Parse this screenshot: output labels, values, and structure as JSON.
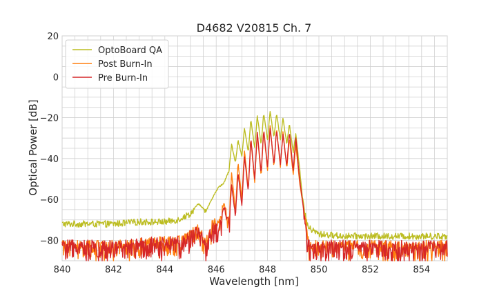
{
  "chart_data": {
    "type": "line",
    "title": "D4682 V20815 Ch. 7",
    "xlabel": "Wavelength [nm]",
    "ylabel": "Optical Power [dB]",
    "xlim": [
      840,
      855
    ],
    "ylim": [
      -90,
      20
    ],
    "x_ticks": [
      840,
      842,
      844,
      846,
      848,
      850,
      852,
      854
    ],
    "y_ticks": [
      20,
      0,
      -20,
      -40,
      -60,
      -80
    ],
    "x_tick_labels": [
      "840",
      "842",
      "844",
      "846",
      "848",
      "850",
      "852",
      "854"
    ],
    "y_tick_labels": [
      "20",
      "0",
      "−20",
      "−40",
      "−60",
      "−80"
    ],
    "grid": true,
    "legend_position": "top-left",
    "series": [
      {
        "name": "OptoBoard QA",
        "color": "#bcbd22",
        "x": [
          840,
          841,
          842,
          843,
          844,
          844.5,
          845,
          845.3,
          845.6,
          845.9,
          846.1,
          846.3,
          846.5,
          846.6,
          846.75,
          846.85,
          847.0,
          847.1,
          847.25,
          847.35,
          847.5,
          847.6,
          847.75,
          847.85,
          848.0,
          848.1,
          848.25,
          848.35,
          848.5,
          848.6,
          848.75,
          848.85,
          849.0,
          849.1,
          849.25,
          849.35,
          849.5,
          849.6,
          850,
          851,
          852,
          853,
          854,
          855
        ],
        "y": [
          -72,
          -72,
          -72,
          -71,
          -71,
          -70,
          -67,
          -62,
          -66,
          -58,
          -54,
          -52,
          -46,
          -33,
          -42,
          -31,
          -39,
          -25,
          -37,
          -21,
          -35,
          -19,
          -33,
          -18,
          -31,
          -17,
          -30,
          -18,
          -31,
          -20,
          -33,
          -23,
          -37,
          -28,
          -45,
          -58,
          -70,
          -74,
          -77,
          -78,
          -78,
          -78,
          -78,
          -78
        ]
      },
      {
        "name": "Post Burn-In",
        "color": "#ff7f0e",
        "x": [
          840,
          841,
          842,
          843,
          844,
          844.5,
          845,
          845.3,
          845.6,
          845.9,
          846.1,
          846.3,
          846.5,
          846.6,
          846.75,
          846.85,
          847.0,
          847.1,
          847.25,
          847.35,
          847.5,
          847.6,
          847.75,
          847.85,
          848.0,
          848.1,
          848.25,
          848.35,
          848.5,
          848.6,
          848.75,
          848.85,
          849.0,
          849.1,
          849.25,
          849.35,
          849.5,
          849.6,
          850,
          851,
          852,
          853,
          854,
          855
        ],
        "y": [
          -82,
          -82,
          -82,
          -81,
          -80,
          -80,
          -77,
          -73,
          -80,
          -70,
          -72,
          -62,
          -70,
          -47,
          -66,
          -42,
          -60,
          -36,
          -55,
          -30,
          -52,
          -27,
          -49,
          -26,
          -46,
          -24,
          -44,
          -25,
          -44,
          -27,
          -45,
          -30,
          -48,
          -33,
          -52,
          -60,
          -72,
          -82,
          -82,
          -82,
          -82,
          -82,
          -82,
          -82
        ]
      },
      {
        "name": "Pre Burn-In",
        "color": "#d62728",
        "x": [
          840,
          841,
          842,
          843,
          844,
          844.5,
          845,
          845.3,
          845.6,
          845.9,
          846.1,
          846.3,
          846.5,
          846.6,
          846.75,
          846.85,
          847.0,
          847.1,
          847.25,
          847.35,
          847.5,
          847.6,
          847.75,
          847.85,
          848.0,
          848.1,
          848.25,
          848.35,
          848.5,
          848.6,
          848.75,
          848.85,
          849.0,
          849.1,
          849.25,
          849.35,
          849.5,
          849.6,
          850,
          851,
          852,
          853,
          854,
          855
        ],
        "y": [
          -82,
          -82,
          -82,
          -81,
          -80,
          -80,
          -77,
          -74,
          -82,
          -72,
          -75,
          -64,
          -72,
          -53,
          -68,
          -47,
          -63,
          -39,
          -56,
          -30,
          -50,
          -27,
          -47,
          -26,
          -44,
          -25,
          -43,
          -26,
          -43,
          -28,
          -44,
          -27,
          -46,
          -30,
          -50,
          -60,
          -74,
          -82,
          -82,
          -82,
          -82,
          -82,
          -82,
          -82
        ]
      }
    ]
  }
}
